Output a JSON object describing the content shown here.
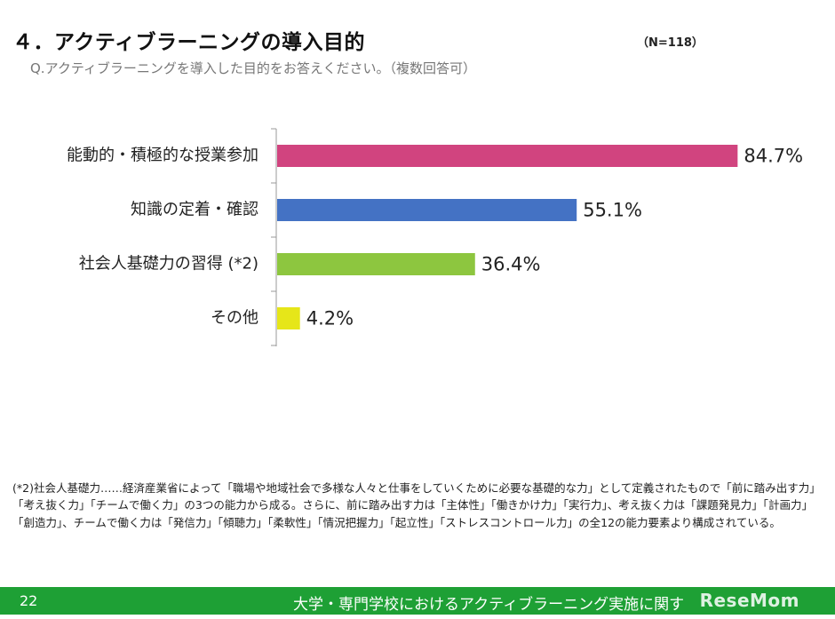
{
  "header": {
    "title": "４．アクティブラーニングの導入目的",
    "n_count": "（N=118）",
    "question": "Q.アクティブラーニングを導入した目的をお答えください。（複数回答可）"
  },
  "chart_data": {
    "type": "bar",
    "orientation": "horizontal",
    "categories": [
      "能動的・積極的な授業参加",
      "知識の定着・確認",
      "社会人基礎力の習得 (*2)",
      "その他"
    ],
    "values": [
      84.7,
      55.1,
      36.4,
      4.2
    ],
    "value_labels": [
      "84.7%",
      "55.1%",
      "36.4%",
      "4.2%"
    ],
    "colors": [
      "#d1447f",
      "#4472c4",
      "#8dc63f",
      "#e6e619"
    ],
    "xlim": [
      0,
      100
    ],
    "grid": false,
    "title": "",
    "xlabel": "",
    "ylabel": ""
  },
  "footnote": "(*2)社会人基礎力……経済産業省によって「職場や地域社会で多様な人々と仕事をしていくために必要な基礎的な力」として定義されたもので「前に踏み出す力」「考え抜く力」「チームで働く力」の3つの能力から成る。さらに、前に踏み出す力は「主体性」「働きかけ力」「実行力」、考え抜く力は「課題発見力」「計画力」「創造力」、チームで働く力は「発信力」「傾聴力」「柔軟性」「情況把握力」「起立性」「ストレスコントロール力」の全12の能力要素より構成されている。",
  "footer": {
    "page_number": "22",
    "text": "大学・専門学校におけるアクティブラーニング実施に関する調査",
    "watermark": "ReseMom",
    "accent_color": "#1ea035"
  }
}
